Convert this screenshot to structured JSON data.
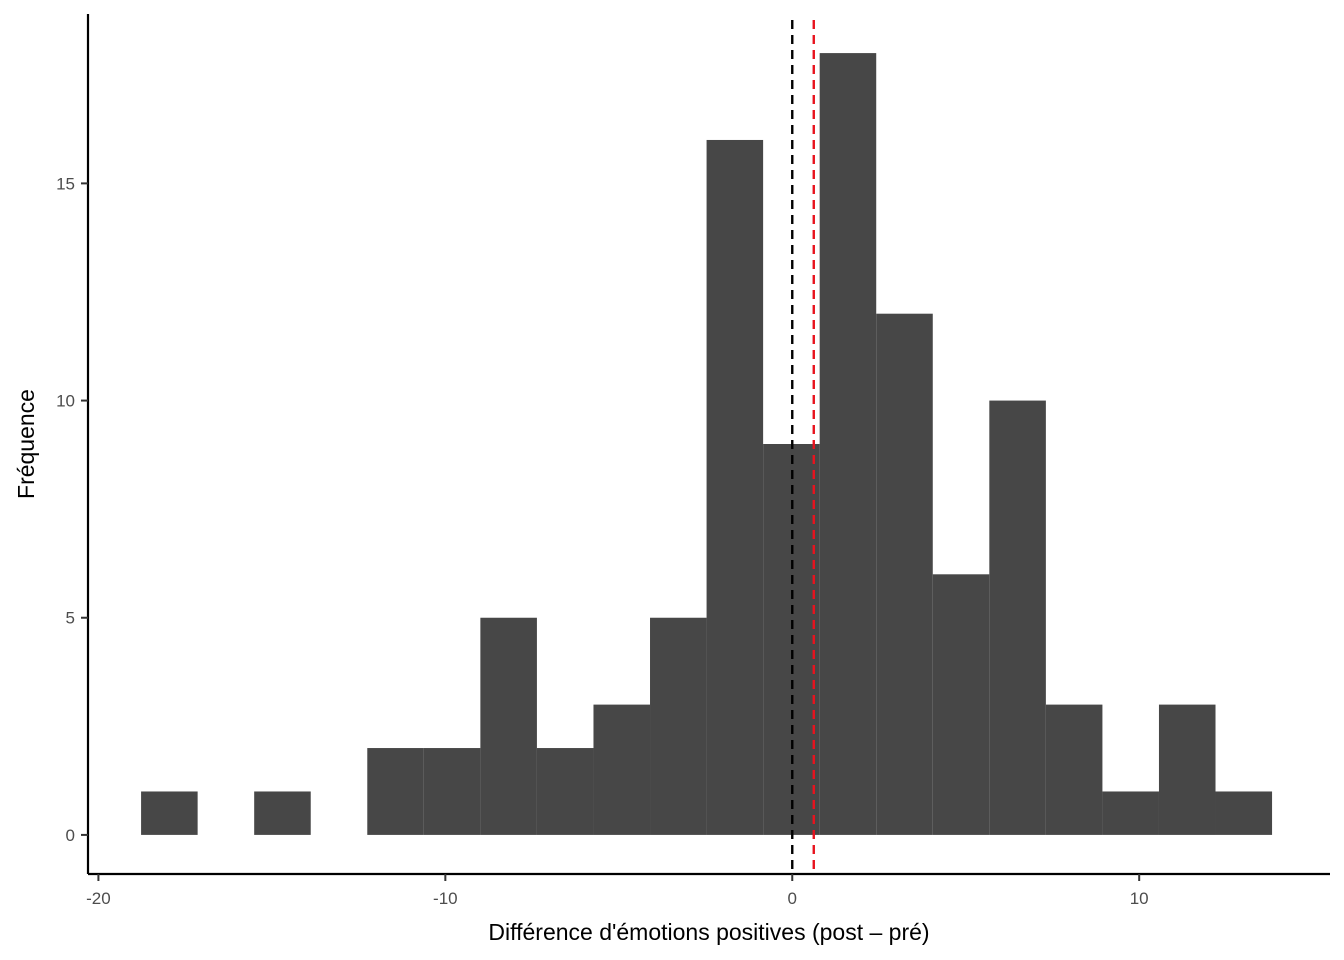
{
  "chart_data": {
    "type": "bar",
    "subtype": "histogram",
    "xlabel": "Différence d'émotions positives (post – pré)",
    "ylabel": "Fréquence",
    "xlim": [
      -20.3,
      15.5
    ],
    "ylim": [
      -0.9,
      18.9
    ],
    "x_ticks": [
      {
        "value": -20,
        "label": "-20"
      },
      {
        "value": -10,
        "label": "-10"
      },
      {
        "value": 0,
        "label": "0"
      },
      {
        "value": 10,
        "label": "10"
      }
    ],
    "y_ticks": [
      {
        "value": 0,
        "label": "0"
      },
      {
        "value": 5,
        "label": "5"
      },
      {
        "value": 10,
        "label": "10"
      },
      {
        "value": 15,
        "label": "15"
      }
    ],
    "bin_width": 1.63,
    "bins": [
      {
        "x0": -18.77,
        "x1": -17.14,
        "count": 1
      },
      {
        "x0": -17.14,
        "x1": -15.51,
        "count": 0
      },
      {
        "x0": -15.51,
        "x1": -13.88,
        "count": 1
      },
      {
        "x0": -13.88,
        "x1": -12.25,
        "count": 0
      },
      {
        "x0": -12.25,
        "x1": -10.62,
        "count": 2
      },
      {
        "x0": -10.62,
        "x1": -8.99,
        "count": 2
      },
      {
        "x0": -8.99,
        "x1": -7.36,
        "count": 5
      },
      {
        "x0": -7.36,
        "x1": -5.73,
        "count": 2
      },
      {
        "x0": -5.73,
        "x1": -4.1,
        "count": 3
      },
      {
        "x0": -4.1,
        "x1": -2.47,
        "count": 5
      },
      {
        "x0": -2.47,
        "x1": -0.84,
        "count": 16
      },
      {
        "x0": -0.84,
        "x1": 0.79,
        "count": 9
      },
      {
        "x0": 0.79,
        "x1": 2.42,
        "count": 18
      },
      {
        "x0": 2.42,
        "x1": 4.05,
        "count": 12
      },
      {
        "x0": 4.05,
        "x1": 5.68,
        "count": 6
      },
      {
        "x0": 5.68,
        "x1": 7.31,
        "count": 10
      },
      {
        "x0": 7.31,
        "x1": 8.94,
        "count": 3
      },
      {
        "x0": 8.94,
        "x1": 10.57,
        "count": 1
      },
      {
        "x0": 10.57,
        "x1": 12.2,
        "count": 3
      },
      {
        "x0": 12.2,
        "x1": 13.83,
        "count": 1
      }
    ],
    "bar_color": "#474747",
    "reference_lines": [
      {
        "x": 0,
        "color": "#000000",
        "style": "dashed"
      },
      {
        "x": 0.62,
        "color": "#e8131e",
        "style": "dashed"
      }
    ],
    "grid": false,
    "legend": "none"
  }
}
